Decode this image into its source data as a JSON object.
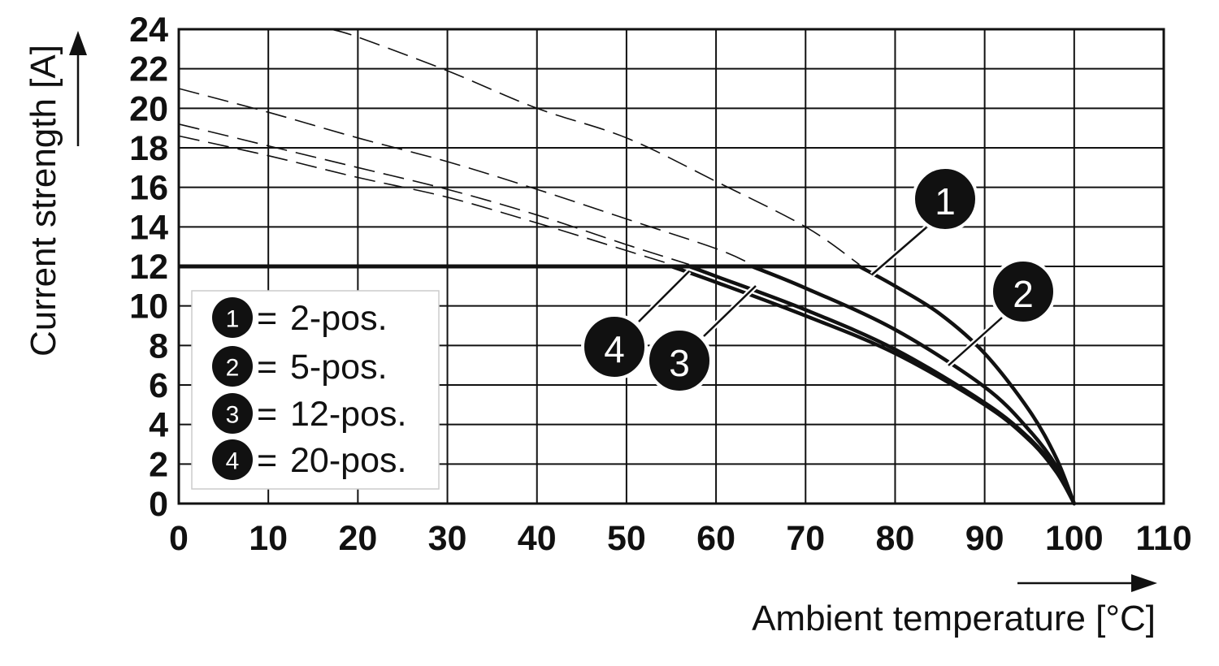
{
  "chart_data": {
    "type": "line",
    "title": "",
    "xlabel": "Ambient temperature [°C]",
    "ylabel": "Current strength [A]",
    "xlim": [
      0,
      110
    ],
    "ylim": [
      0,
      24
    ],
    "x_ticks": [
      "0",
      "10",
      "20",
      "30",
      "40",
      "50",
      "60",
      "70",
      "80",
      "90",
      "100",
      "110"
    ],
    "y_ticks": [
      "0",
      "2",
      "4",
      "6",
      "8",
      "10",
      "12",
      "14",
      "16",
      "18",
      "20",
      "22",
      "24"
    ],
    "grid": true,
    "current_limit": 12,
    "legend_position": "lower-left",
    "series": [
      {
        "name": "2-pos.",
        "badge": "1",
        "theoretical_curve": [
          [
            17,
            24
          ],
          [
            20,
            23.6
          ],
          [
            30,
            21.9
          ],
          [
            40,
            20
          ],
          [
            50,
            18.5
          ],
          [
            60,
            16.3
          ],
          [
            70,
            14
          ],
          [
            76,
            12.1
          ]
        ],
        "derating_curve": [
          [
            76,
            12
          ],
          [
            80,
            11
          ],
          [
            85,
            9.6
          ],
          [
            90,
            7.6
          ],
          [
            95,
            4.7
          ],
          [
            98,
            2.3
          ],
          [
            100,
            0
          ]
        ]
      },
      {
        "name": "5-pos.",
        "badge": "2",
        "theoretical_curve": [
          [
            0,
            21
          ],
          [
            10,
            19.8
          ],
          [
            20,
            18.5
          ],
          [
            30,
            17.3
          ],
          [
            40,
            15.9
          ],
          [
            50,
            14.4
          ],
          [
            60,
            12.9
          ],
          [
            64,
            12.1
          ]
        ],
        "derating_curve": [
          [
            64,
            12
          ],
          [
            70,
            10.9
          ],
          [
            80,
            8.8
          ],
          [
            90,
            5.9
          ],
          [
            95,
            3.7
          ],
          [
            98,
            1.9
          ],
          [
            100,
            0
          ]
        ]
      },
      {
        "name": "12-pos.",
        "badge": "3",
        "theoretical_curve": [
          [
            0,
            19.2
          ],
          [
            10,
            18.1
          ],
          [
            20,
            17
          ],
          [
            30,
            15.9
          ],
          [
            40,
            14.6
          ],
          [
            50,
            13.1
          ],
          [
            57,
            12.1
          ]
        ],
        "derating_curve": [
          [
            57,
            12
          ],
          [
            60,
            11.5
          ],
          [
            70,
            9.8
          ],
          [
            80,
            7.8
          ],
          [
            90,
            5.1
          ],
          [
            95,
            3.3
          ],
          [
            98,
            1.7
          ],
          [
            100,
            0
          ]
        ]
      },
      {
        "name": "20-pos.",
        "badge": "4",
        "theoretical_curve": [
          [
            0,
            18.6
          ],
          [
            10,
            17.6
          ],
          [
            20,
            16.5
          ],
          [
            30,
            15.5
          ],
          [
            40,
            14.2
          ],
          [
            50,
            12.8
          ],
          [
            55,
            12.1
          ]
        ],
        "derating_curve": [
          [
            55,
            12
          ],
          [
            60,
            11.2
          ],
          [
            70,
            9.5
          ],
          [
            80,
            7.6
          ],
          [
            90,
            5
          ],
          [
            95,
            3.2
          ],
          [
            98,
            1.6
          ],
          [
            100,
            0
          ]
        ]
      }
    ]
  },
  "legend": {
    "items": [
      {
        "badge": "1",
        "separator": "=",
        "label": "2-pos."
      },
      {
        "badge": "2",
        "separator": "=",
        "label": "5-pos."
      },
      {
        "badge": "3",
        "separator": "=",
        "label": "12-pos."
      },
      {
        "badge": "4",
        "separator": "=",
        "label": "20-pos."
      }
    ]
  },
  "callouts": [
    {
      "badge": "1",
      "series": "2-pos."
    },
    {
      "badge": "2",
      "series": "5-pos."
    },
    {
      "badge": "3",
      "series": "12-pos."
    },
    {
      "badge": "4",
      "series": "20-pos."
    }
  ]
}
